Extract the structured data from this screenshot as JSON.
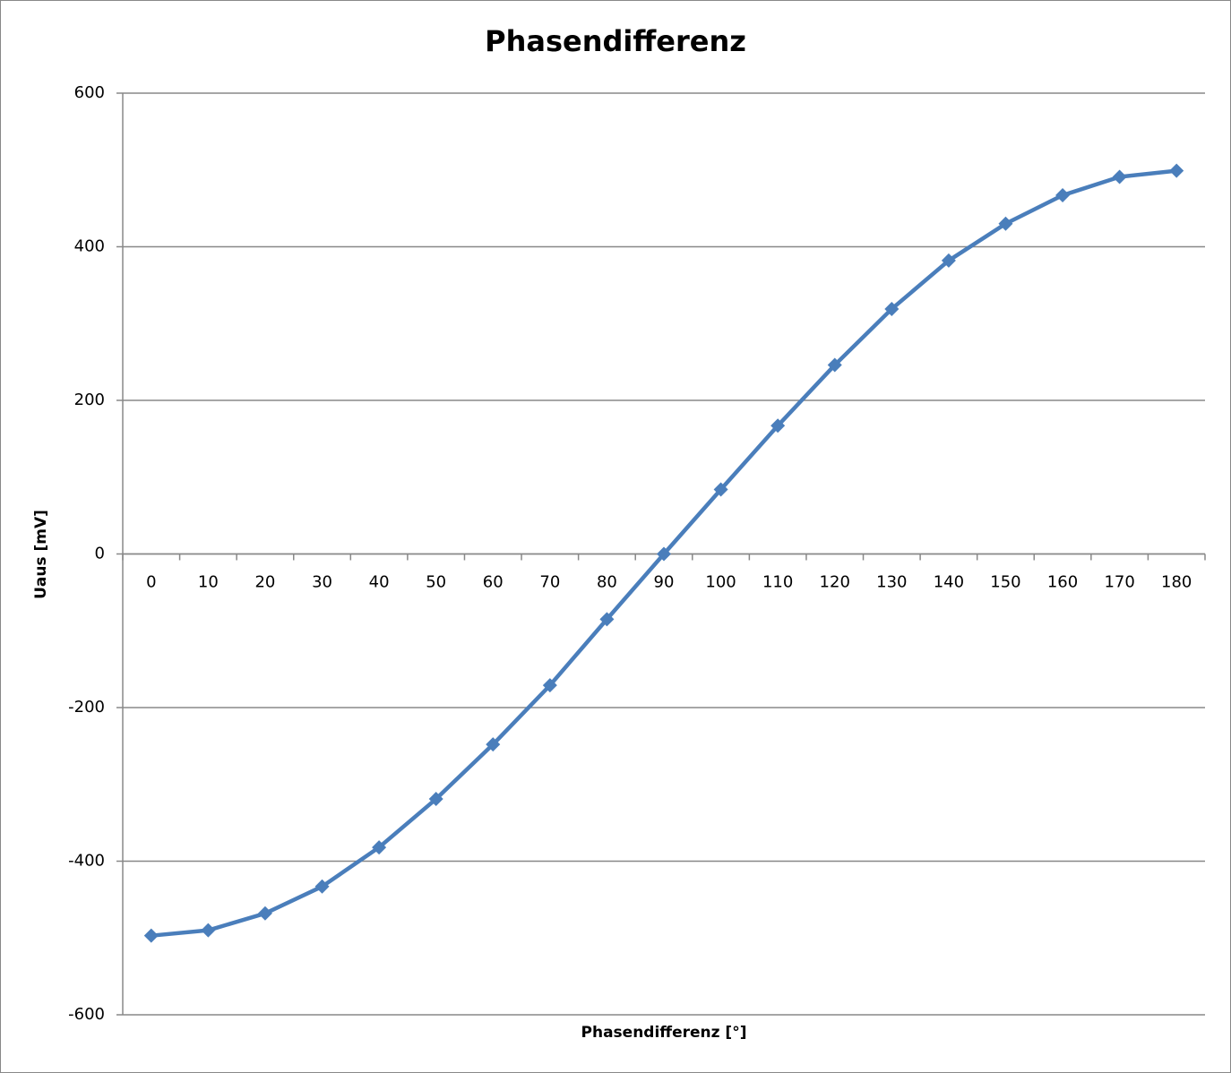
{
  "chart_data": {
    "type": "line",
    "title": "Phasendifferenz",
    "x_label": "Phasendifferenz [°]",
    "y_label": "Uaus [mV]",
    "categories": [
      "0",
      "10",
      "20",
      "30",
      "40",
      "50",
      "60",
      "70",
      "80",
      "90",
      "100",
      "110",
      "120",
      "130",
      "140",
      "150",
      "160",
      "170",
      "180"
    ],
    "values": [
      -497,
      -490,
      -468,
      -433,
      -382,
      -319,
      -248,
      -171,
      -85,
      0,
      84,
      167,
      246,
      319,
      382,
      430,
      467,
      491,
      499
    ],
    "color": "#4a7ebb",
    "ylim": [
      -600,
      600
    ],
    "yticks": [
      -600,
      -400,
      -200,
      0,
      200,
      400,
      600
    ],
    "grid": true
  }
}
